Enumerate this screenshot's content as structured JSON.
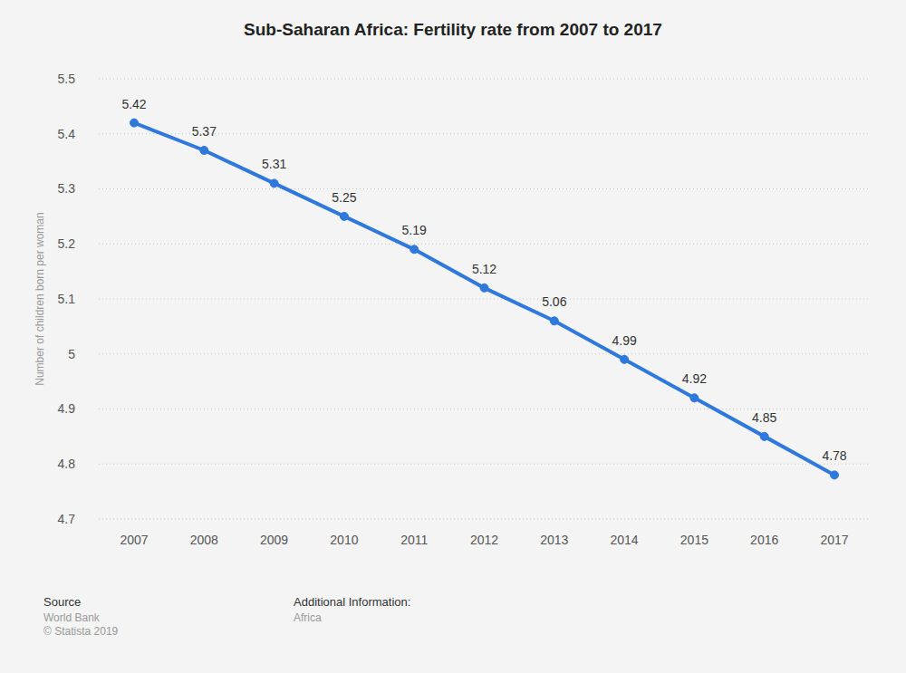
{
  "chart_data": {
    "type": "line",
    "title": "Sub-Saharan Africa: Fertility rate from 2007 to 2017",
    "y_label": "Number of children born per woman",
    "categories": [
      "2007",
      "2008",
      "2009",
      "2010",
      "2011",
      "2012",
      "2013",
      "2014",
      "2015",
      "2016",
      "2017"
    ],
    "values": [
      5.42,
      5.37,
      5.31,
      5.25,
      5.19,
      5.12,
      5.06,
      4.99,
      4.92,
      4.85,
      4.78
    ],
    "color": "#2f78dc",
    "marker": "circle",
    "ylim": [
      4.7,
      5.5
    ],
    "yticks": [
      4.7,
      4.8,
      4.9,
      5,
      5.1,
      5.2,
      5.3,
      5.4,
      5.5
    ],
    "grid": true,
    "data_labels": true,
    "footer": {
      "source_heading": "Source",
      "source": "World Bank",
      "copyright": "© Statista 2019",
      "info_heading": "Additional Information:",
      "info": "Africa"
    }
  }
}
